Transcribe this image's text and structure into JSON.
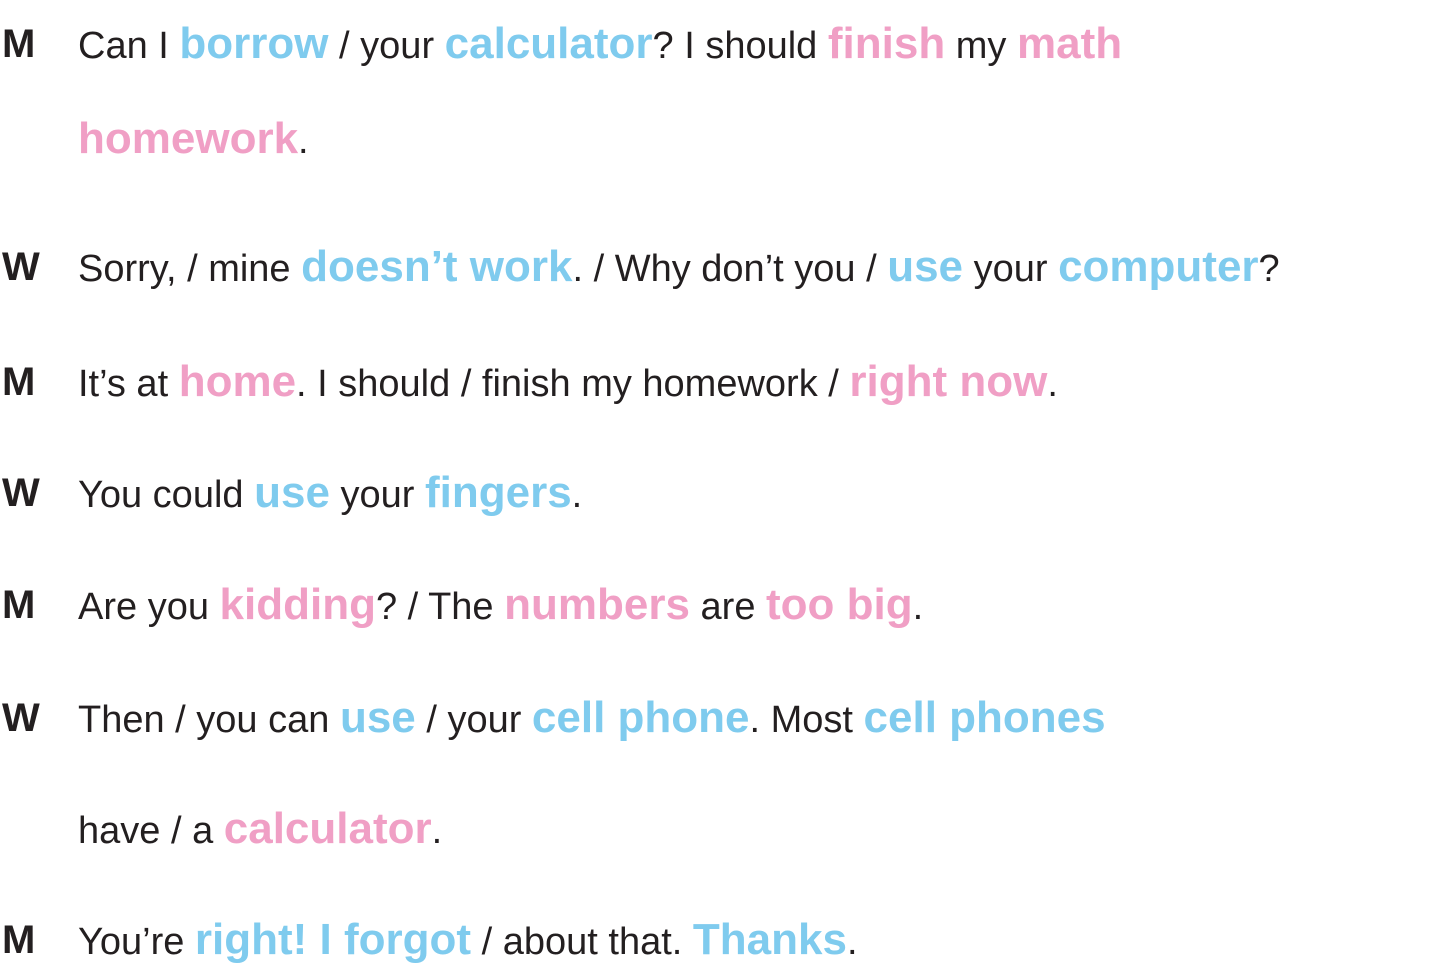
{
  "colors": {
    "text": "#231f20",
    "stress_blue": "#7fcbee",
    "stress_pink": "#f09fc5"
  },
  "lines": [
    {
      "speaker": "M",
      "segments": [
        {
          "text": "Can I ",
          "style": "plain"
        },
        {
          "text": "borrow",
          "style": "blue"
        },
        {
          "text": " / your ",
          "style": "plain"
        },
        {
          "text": "calculator",
          "style": "blue"
        },
        {
          "text": "? I should ",
          "style": "plain"
        },
        {
          "text": "finish",
          "style": "pink"
        },
        {
          "text": " my ",
          "style": "plain"
        },
        {
          "text": "math",
          "style": "pink"
        }
      ]
    },
    {
      "speaker": "",
      "segments": [
        {
          "text": "homework",
          "style": "pink"
        },
        {
          "text": ".",
          "style": "plain"
        }
      ]
    },
    {
      "speaker": "W",
      "segments": [
        {
          "text": "Sorry, / mine ",
          "style": "plain"
        },
        {
          "text": "doesn’t work",
          "style": "blue"
        },
        {
          "text": ". / Why don’t you / ",
          "style": "plain"
        },
        {
          "text": "use",
          "style": "blue"
        },
        {
          "text": " your ",
          "style": "plain"
        },
        {
          "text": "computer",
          "style": "blue"
        },
        {
          "text": "?",
          "style": "plain"
        }
      ]
    },
    {
      "speaker": "M",
      "segments": [
        {
          "text": "It’s at ",
          "style": "plain"
        },
        {
          "text": "home",
          "style": "pink"
        },
        {
          "text": ". I should / finish my homework / ",
          "style": "plain"
        },
        {
          "text": "right now",
          "style": "pink"
        },
        {
          "text": ".",
          "style": "plain"
        }
      ]
    },
    {
      "speaker": "W",
      "segments": [
        {
          "text": " You could ",
          "style": "plain"
        },
        {
          "text": "use",
          "style": "blue"
        },
        {
          "text": " your ",
          "style": "plain"
        },
        {
          "text": "fingers",
          "style": "blue"
        },
        {
          "text": ".",
          "style": "plain"
        }
      ]
    },
    {
      "speaker": "M",
      "segments": [
        {
          "text": "Are you ",
          "style": "plain"
        },
        {
          "text": "kidding",
          "style": "pink"
        },
        {
          "text": "? / The ",
          "style": "plain"
        },
        {
          "text": "numbers",
          "style": "pink"
        },
        {
          "text": " are ",
          "style": "plain"
        },
        {
          "text": "too big",
          "style": "pink"
        },
        {
          "text": ".",
          "style": "plain"
        }
      ]
    },
    {
      "speaker": "W",
      "segments": [
        {
          "text": "Then / you can ",
          "style": "plain"
        },
        {
          "text": "use",
          "style": "blue"
        },
        {
          "text": " / your ",
          "style": "plain"
        },
        {
          "text": "cell phone",
          "style": "blue"
        },
        {
          "text": ". Most ",
          "style": "plain"
        },
        {
          "text": "cell phones",
          "style": "blue"
        }
      ]
    },
    {
      "speaker": "",
      "segments": [
        {
          "text": "have / a ",
          "style": "plain"
        },
        {
          "text": "calculator",
          "style": "pink"
        },
        {
          "text": ".",
          "style": "plain"
        }
      ]
    },
    {
      "speaker": "M",
      "segments": [
        {
          "text": "You’re ",
          "style": "plain"
        },
        {
          "text": "right! I forgot",
          "style": "blue"
        },
        {
          "text": " / about that. ",
          "style": "plain"
        },
        {
          "text": "Thanks",
          "style": "blue"
        },
        {
          "text": ".",
          "style": "plain"
        }
      ]
    }
  ]
}
